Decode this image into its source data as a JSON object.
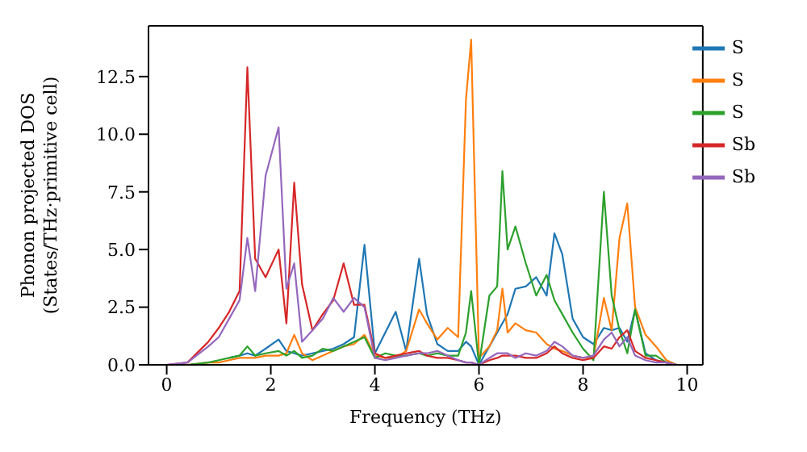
{
  "chart_data": {
    "type": "line",
    "xlabel": "Frequency (THz)",
    "ylabel": "Phonon projected DOS\n(States/THz·primitive cell)",
    "x": [
      0,
      0.4,
      0.8,
      1.0,
      1.2,
      1.4,
      1.55,
      1.7,
      1.9,
      2.15,
      2.3,
      2.45,
      2.6,
      2.8,
      3.0,
      3.2,
      3.4,
      3.6,
      3.8,
      4.0,
      4.2,
      4.4,
      4.6,
      4.85,
      5.0,
      5.2,
      5.4,
      5.6,
      5.75,
      5.85,
      6.0,
      6.2,
      6.35,
      6.45,
      6.55,
      6.7,
      6.9,
      7.1,
      7.3,
      7.45,
      7.6,
      7.8,
      8.0,
      8.2,
      8.4,
      8.55,
      8.7,
      8.85,
      9.0,
      9.2,
      9.4,
      9.6,
      9.8
    ],
    "series": [
      {
        "name": "S",
        "color": "#1f77b4",
        "values": [
          null,
          null,
          null,
          null,
          0.3,
          0.4,
          0.5,
          0.4,
          0.7,
          1.1,
          0.6,
          0.5,
          0.4,
          0.5,
          0.6,
          0.7,
          0.9,
          1.2,
          5.2,
          0.5,
          1.4,
          2.3,
          0.6,
          4.6,
          2.2,
          0.9,
          0.6,
          0.6,
          1.0,
          0.8,
          0,
          0.8,
          1.4,
          1.8,
          2.2,
          3.3,
          3.4,
          3.8,
          3.0,
          5.7,
          4.8,
          2.0,
          1.2,
          0.9,
          1.6,
          1.5,
          1.6,
          1.0,
          2.4,
          0.5,
          0.2,
          0.1,
          0
        ]
      },
      {
        "name": "S",
        "color": "#ff7f0e",
        "values": [
          0,
          0,
          0.1,
          0.1,
          0.2,
          0.3,
          0.3,
          0.3,
          0.4,
          0.4,
          0.5,
          1.3,
          0.5,
          0.2,
          0.4,
          0.6,
          0.8,
          0.9,
          1.3,
          0.4,
          0.3,
          0.3,
          0.6,
          2.4,
          1.8,
          1.1,
          1.6,
          1.2,
          11.5,
          14.1,
          0.3,
          0.8,
          1.5,
          3.3,
          1.4,
          1.8,
          1.5,
          1.4,
          0.9,
          0.7,
          0.6,
          0.4,
          0.3,
          0.3,
          2.9,
          1.5,
          5.5,
          7.0,
          2.5,
          1.3,
          0.8,
          0.2,
          0
        ]
      },
      {
        "name": "S",
        "color": "#2ca02c",
        "values": [
          0,
          0,
          0.1,
          0.2,
          0.3,
          0.4,
          0.8,
          0.4,
          0.5,
          0.6,
          0.4,
          0.6,
          0.3,
          0.4,
          0.7,
          0.6,
          0.8,
          1.0,
          1.2,
          0.3,
          0.5,
          0.4,
          0.4,
          0.5,
          0.4,
          0.5,
          0.4,
          0.4,
          1.4,
          3.2,
          0,
          3.0,
          3.4,
          8.4,
          5.0,
          6.0,
          4.4,
          3.0,
          3.9,
          2.8,
          2.2,
          1.4,
          0.7,
          0.2,
          7.5,
          3.0,
          1.5,
          0.5,
          2.4,
          0.4,
          0.4,
          0.1,
          0
        ]
      },
      {
        "name": "Sb",
        "color": "#d62728",
        "values": [
          0,
          0.1,
          1.0,
          1.6,
          2.3,
          3.2,
          12.9,
          4.6,
          3.8,
          5.0,
          1.8,
          7.9,
          3.5,
          1.5,
          2.2,
          2.8,
          4.4,
          2.6,
          2.6,
          0.5,
          0.3,
          0.4,
          0.5,
          0.6,
          0.4,
          0.3,
          0.3,
          0.2,
          0.1,
          0.1,
          0,
          0.2,
          0.3,
          0.4,
          0.4,
          0.4,
          0.3,
          0.3,
          0.5,
          0.8,
          0.5,
          0.3,
          0.2,
          0.3,
          0.8,
          0.7,
          1.2,
          1.5,
          0.6,
          0.3,
          0.2,
          0.1,
          0
        ]
      },
      {
        "name": "Sb",
        "color": "#9467bd",
        "values": [
          0,
          0.1,
          0.8,
          1.2,
          2.0,
          2.8,
          5.5,
          3.2,
          8.2,
          10.3,
          3.3,
          4.4,
          1.0,
          1.5,
          2.0,
          2.9,
          2.3,
          2.9,
          2.5,
          0.3,
          0.2,
          0.3,
          0.4,
          0.5,
          0.5,
          0.6,
          0.4,
          0.2,
          0.1,
          0.1,
          0,
          0.3,
          0.5,
          0.5,
          0.5,
          0.3,
          0.5,
          0.4,
          0.6,
          1.0,
          0.8,
          0.4,
          0.3,
          0.4,
          1.1,
          1.4,
          0.8,
          1.2,
          0.4,
          0.2,
          0.1,
          0.1,
          0
        ]
      }
    ],
    "xlim": [
      -0.35,
      10.3
    ],
    "xticks": [
      0,
      2,
      4,
      6,
      8,
      10
    ],
    "ylim": [
      0,
      14.7
    ],
    "yticks": [
      {
        "value": 0,
        "label": "0.0"
      },
      {
        "value": 2.5,
        "label": "2.5"
      },
      {
        "value": 5,
        "label": "5.0"
      },
      {
        "value": 7.5,
        "label": "7.5"
      },
      {
        "value": 10,
        "label": "10.0"
      },
      {
        "value": 12.5,
        "label": "12.5"
      }
    ],
    "legend": "top right",
    "grid": false,
    "marker": "none",
    "line_style": "solid"
  }
}
